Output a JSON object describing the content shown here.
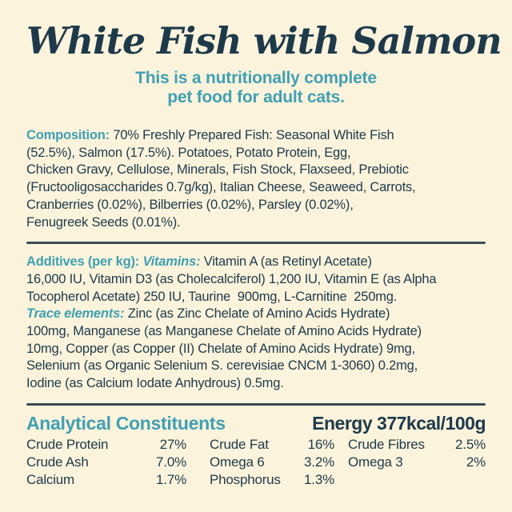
{
  "colors": {
    "background": "#FBF3DC",
    "navy": "#1E3A4A",
    "teal": "#41A0B3",
    "divider": "#3D4A52"
  },
  "title": "White Fish with Salmon",
  "subtitle": {
    "line1": "This is a nutritionally complete",
    "line2": "pet food for adult cats."
  },
  "composition": {
    "lines": [
      [
        {
          "t": "Composition: ",
          "s": "teal-bold",
          "n": "composition-heading"
        },
        {
          "t": "70% Freshly Prepared Fish: Seasonal White Fish",
          "s": "body"
        }
      ],
      [
        {
          "t": "(52.5%), Salmon (17.5%). Potatoes, Potato Protein, Egg,",
          "s": "body"
        }
      ],
      [
        {
          "t": "Chicken Gravy, Cellulose, Minerals, Fish Stock, Flaxseed, Prebiotic",
          "s": "body"
        }
      ],
      [
        {
          "t": "(Fructooligosaccharides 0.7g/kg), Italian Cheese, Seaweed, Carrots,",
          "s": "body"
        }
      ],
      [
        {
          "t": "Cranberries (0.02%), Bilberries (0.02%), Parsley (0.02%),",
          "s": "body"
        }
      ],
      [
        {
          "t": "Fenugreek Seeds (0.01%).",
          "s": "body"
        }
      ]
    ]
  },
  "additives": {
    "lines": [
      [
        {
          "t": "Additives (per kg): ",
          "s": "teal-bold",
          "n": "additives-heading"
        },
        {
          "t": "Vitamins: ",
          "s": "teal-bold-italic",
          "n": "vitamins-heading"
        },
        {
          "t": "Vitamin A (as Retinyl Acetate)",
          "s": "body"
        }
      ],
      [
        {
          "t": "16,000 IU, Vitamin D3 (as Cholecalciferol) 1,200 IU, Vitamin E (as Alpha",
          "s": "body"
        }
      ],
      [
        {
          "t": "Tocopherol Acetate) 250 IU, Taurine  900mg, L-Carnitine  250mg.",
          "s": "body"
        }
      ],
      [
        {
          "t": "Trace elements: ",
          "s": "teal-bold-italic",
          "n": "trace-elements-heading"
        },
        {
          "t": "Zinc (as Zinc Chelate of Amino Acids Hydrate)",
          "s": "body"
        }
      ],
      [
        {
          "t": "100mg, Manganese (as Manganese Chelate of Amino Acids Hydrate)",
          "s": "body"
        }
      ],
      [
        {
          "t": "10mg, Copper (as Copper (II) Chelate of Amino Acids Hydrate) 9mg,",
          "s": "body"
        }
      ],
      [
        {
          "t": "Selenium (as Organic Selenium S. cerevisiae CNCM 1-3060) 0.2mg,",
          "s": "body"
        }
      ],
      [
        {
          "t": "Iodine (as Calcium Iodate Anhydrous) 0.5mg.",
          "s": "body"
        }
      ]
    ]
  },
  "analytical": {
    "heading": "Analytical Constituents",
    "energy": "Energy 377kcal/100g",
    "rows": [
      [
        {
          "label": "Crude Protein",
          "value": "27%"
        },
        {
          "label": "Crude Fat",
          "value": "16%"
        },
        {
          "label": "Crude Fibres",
          "value": "2.5%"
        }
      ],
      [
        {
          "label": "Crude Ash",
          "value": "7.0%"
        },
        {
          "label": "Omega 6",
          "value": "3.2%"
        },
        {
          "label": "Omega 3",
          "value": "2%"
        }
      ],
      [
        {
          "label": "Calcium",
          "value": "1.7%"
        },
        {
          "label": "Phosphorus",
          "value": "1.3%"
        },
        null
      ]
    ]
  }
}
